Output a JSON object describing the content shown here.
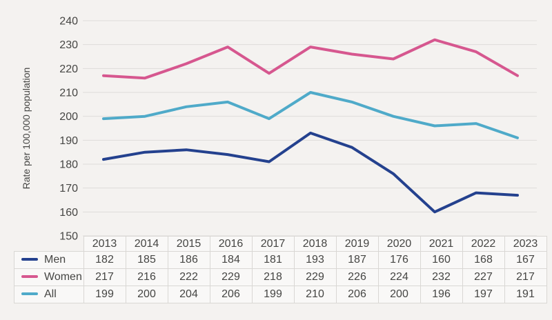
{
  "colors": {
    "page_bg": "#f4f2f0",
    "cell_bg": "#f9f8f7",
    "border": "#d9d7d4",
    "gridline": "#dedcda",
    "text": "#454543"
  },
  "chart_data": {
    "type": "line",
    "title": "",
    "xlabel": "",
    "ylabel": "Rate per 100,000 population",
    "ylim": [
      150,
      240
    ],
    "ytick_step": 10,
    "yticks": [
      150,
      160,
      170,
      180,
      190,
      200,
      210,
      220,
      230,
      240
    ],
    "grid": true,
    "legend_position": "table-left-column",
    "categories": [
      "2013",
      "2014",
      "2015",
      "2016",
      "2017",
      "2018",
      "2019",
      "2020",
      "2021",
      "2022",
      "2023"
    ],
    "series": [
      {
        "name": "Men",
        "color": "#24418e",
        "values": [
          182,
          185,
          186,
          184,
          181,
          193,
          187,
          176,
          160,
          168,
          167
        ]
      },
      {
        "name": "Women",
        "color": "#d6578f",
        "values": [
          217,
          216,
          222,
          229,
          218,
          229,
          226,
          224,
          232,
          227,
          217
        ]
      },
      {
        "name": "All",
        "color": "#4faac9",
        "values": [
          199,
          200,
          204,
          206,
          199,
          210,
          206,
          200,
          196,
          197,
          191
        ]
      }
    ]
  }
}
